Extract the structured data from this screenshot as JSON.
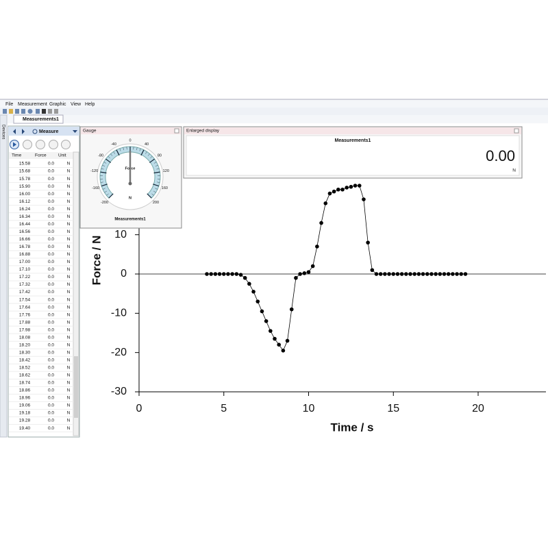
{
  "menu": [
    "File",
    "Measurement",
    "Graphic",
    "View",
    "Help"
  ],
  "tab": "Measurements1",
  "side_tab": "Devices",
  "measure_panel": {
    "title": "Measure",
    "columns": [
      "Time",
      "Force",
      "Unit"
    ],
    "rows": [
      [
        "15.58",
        "0.0",
        "N"
      ],
      [
        "15.68",
        "0.0",
        "N"
      ],
      [
        "15.78",
        "0.0",
        "N"
      ],
      [
        "15.90",
        "0.0",
        "N"
      ],
      [
        "16.00",
        "0.0",
        "N"
      ],
      [
        "16.12",
        "0.0",
        "N"
      ],
      [
        "16.24",
        "0.0",
        "N"
      ],
      [
        "16.34",
        "0.0",
        "N"
      ],
      [
        "16.44",
        "0.0",
        "N"
      ],
      [
        "16.56",
        "0.0",
        "N"
      ],
      [
        "16.66",
        "0.0",
        "N"
      ],
      [
        "16.78",
        "0.0",
        "N"
      ],
      [
        "16.88",
        "0.0",
        "N"
      ],
      [
        "17.00",
        "0.0",
        "N"
      ],
      [
        "17.10",
        "0.0",
        "N"
      ],
      [
        "17.22",
        "0.0",
        "N"
      ],
      [
        "17.32",
        "0.0",
        "N"
      ],
      [
        "17.42",
        "0.0",
        "N"
      ],
      [
        "17.54",
        "0.0",
        "N"
      ],
      [
        "17.64",
        "0.0",
        "N"
      ],
      [
        "17.76",
        "0.0",
        "N"
      ],
      [
        "17.88",
        "0.0",
        "N"
      ],
      [
        "17.98",
        "0.0",
        "N"
      ],
      [
        "18.08",
        "0.0",
        "N"
      ],
      [
        "18.20",
        "0.0",
        "N"
      ],
      [
        "18.30",
        "0.0",
        "N"
      ],
      [
        "18.42",
        "0.0",
        "N"
      ],
      [
        "18.52",
        "0.0",
        "N"
      ],
      [
        "18.62",
        "0.0",
        "N"
      ],
      [
        "18.74",
        "0.0",
        "N"
      ],
      [
        "18.86",
        "0.0",
        "N"
      ],
      [
        "18.96",
        "0.0",
        "N"
      ],
      [
        "19.06",
        "0.0",
        "N"
      ],
      [
        "19.18",
        "0.0",
        "N"
      ],
      [
        "19.28",
        "0.0",
        "N"
      ],
      [
        "19.40",
        "0.0",
        "N"
      ]
    ]
  },
  "gauge": {
    "title": "Gauge",
    "label": "Force",
    "unit": "N",
    "name": "Measurements1",
    "value": 0,
    "lim": [
      -200,
      200
    ],
    "ticks": [
      -200,
      -160,
      -120,
      -80,
      -40,
      0,
      40,
      80,
      120,
      160,
      200
    ]
  },
  "enlarged_display": {
    "title": "Enlarged display",
    "name": "Measurements1",
    "value": "0.00",
    "unit": "N"
  },
  "chart_data": {
    "type": "line",
    "markers": true,
    "color": "#000000",
    "xlabel": "Time / s",
    "ylabel": "Force / N",
    "xlim": [
      0,
      24
    ],
    "ylim": [
      -30,
      30
    ],
    "xticks": [
      0,
      5,
      10,
      15,
      20
    ],
    "yticks": [
      -30,
      -20,
      -10,
      0,
      10
    ],
    "x": [
      4,
      4.25,
      4.5,
      4.75,
      5,
      5.25,
      5.5,
      5.75,
      6,
      6.25,
      6.5,
      6.75,
      7,
      7.25,
      7.5,
      7.75,
      8,
      8.25,
      8.5,
      8.75,
      9,
      9.25,
      9.5,
      9.75,
      10,
      10.25,
      10.5,
      10.75,
      11,
      11.25,
      11.5,
      11.75,
      12,
      12.25,
      12.5,
      12.75,
      13,
      13.25,
      13.5,
      13.75,
      14,
      14.25,
      14.5,
      14.75,
      15,
      15.25,
      15.5,
      15.75,
      16,
      16.25,
      16.5,
      16.75,
      17,
      17.25,
      17.5,
      17.75,
      18,
      18.25,
      18.5,
      18.75,
      19,
      19.25
    ],
    "values": [
      0,
      0,
      0,
      0,
      0,
      0,
      0,
      0,
      -0.2,
      -1,
      -2.5,
      -4.5,
      -7,
      -9.5,
      -12,
      -14.5,
      -16.5,
      -18,
      -19.5,
      -17,
      -9,
      -1,
      0,
      0.2,
      0.5,
      2,
      7,
      13,
      18,
      20.5,
      21,
      21.5,
      21.5,
      22,
      22.2,
      22.5,
      22.5,
      19,
      8,
      1,
      0,
      0,
      0,
      0,
      0,
      0,
      0,
      0,
      0,
      0,
      0,
      0,
      0,
      0,
      0,
      0,
      0,
      0,
      0,
      0,
      0,
      0
    ]
  }
}
